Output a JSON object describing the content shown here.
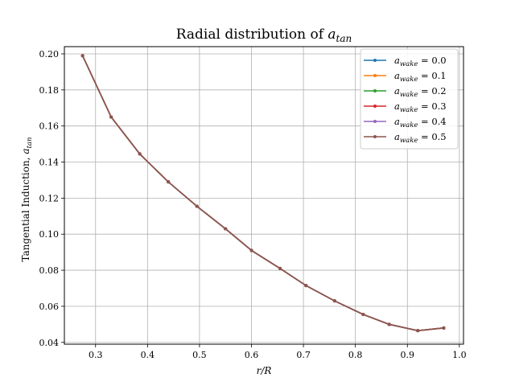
{
  "chart_data": {
    "type": "line",
    "title": "Radial distribution of a_tan",
    "title_parts": {
      "prefix": "Radial distribution of ",
      "var": "a",
      "sub": "tan"
    },
    "xlabel": "r/R",
    "ylabel": "Tangential Induction, a_tan",
    "ylabel_parts": {
      "prefix": "Tangential Induction, ",
      "var": "a",
      "sub": "tan"
    },
    "xlim": [
      0.24,
      1.008
    ],
    "ylim": [
      0.039,
      0.204
    ],
    "xticks": [
      0.3,
      0.4,
      0.5,
      0.6,
      0.7,
      0.8,
      0.9,
      1.0
    ],
    "xtick_labels": [
      "0.3",
      "0.4",
      "0.5",
      "0.6",
      "0.7",
      "0.8",
      "0.9",
      "1.0"
    ],
    "yticks": [
      0.04,
      0.06,
      0.08,
      0.1,
      0.12,
      0.14,
      0.16,
      0.18,
      0.2
    ],
    "ytick_labels": [
      "0.04",
      "0.06",
      "0.08",
      "0.10",
      "0.12",
      "0.14",
      "0.16",
      "0.18",
      "0.20"
    ],
    "grid": true,
    "legend_position": "top-right",
    "x": [
      0.275,
      0.33,
      0.385,
      0.44,
      0.495,
      0.55,
      0.6,
      0.655,
      0.705,
      0.76,
      0.815,
      0.865,
      0.92,
      0.97
    ],
    "series": [
      {
        "name": "a_wake = 0.0",
        "label_parts": {
          "var": "a",
          "sub": "wake",
          "eq": " = 0.0"
        },
        "color": "#1f77b4",
        "values": [
          0.199,
          0.165,
          0.1445,
          0.129,
          0.1155,
          0.103,
          0.091,
          0.081,
          0.0715,
          0.063,
          0.0555,
          0.05,
          0.0465,
          0.048
        ]
      },
      {
        "name": "a_wake = 0.1",
        "label_parts": {
          "var": "a",
          "sub": "wake",
          "eq": " = 0.1"
        },
        "color": "#ff7f0e",
        "values": [
          0.199,
          0.165,
          0.1445,
          0.129,
          0.1155,
          0.103,
          0.091,
          0.081,
          0.0715,
          0.063,
          0.0555,
          0.05,
          0.0465,
          0.048
        ]
      },
      {
        "name": "a_wake = 0.2",
        "label_parts": {
          "var": "a",
          "sub": "wake",
          "eq": " = 0.2"
        },
        "color": "#2ca02c",
        "values": [
          0.199,
          0.165,
          0.1445,
          0.129,
          0.1155,
          0.103,
          0.091,
          0.081,
          0.0715,
          0.063,
          0.0555,
          0.05,
          0.0465,
          0.048
        ]
      },
      {
        "name": "a_wake = 0.3",
        "label_parts": {
          "var": "a",
          "sub": "wake",
          "eq": " = 0.3"
        },
        "color": "#d62728",
        "values": [
          0.199,
          0.165,
          0.1445,
          0.129,
          0.1155,
          0.103,
          0.091,
          0.081,
          0.0715,
          0.063,
          0.0555,
          0.05,
          0.0465,
          0.048
        ]
      },
      {
        "name": "a_wake = 0.4",
        "label_parts": {
          "var": "a",
          "sub": "wake",
          "eq": " = 0.4"
        },
        "color": "#9467bd",
        "values": [
          0.199,
          0.165,
          0.1445,
          0.129,
          0.1155,
          0.103,
          0.091,
          0.081,
          0.0715,
          0.063,
          0.0555,
          0.05,
          0.0465,
          0.048
        ]
      },
      {
        "name": "a_wake = 0.5",
        "label_parts": {
          "var": "a",
          "sub": "wake",
          "eq": " = 0.5"
        },
        "color": "#8c564b",
        "values": [
          0.199,
          0.165,
          0.1445,
          0.129,
          0.1155,
          0.103,
          0.091,
          0.081,
          0.0715,
          0.063,
          0.0555,
          0.05,
          0.0465,
          0.048
        ]
      }
    ]
  }
}
